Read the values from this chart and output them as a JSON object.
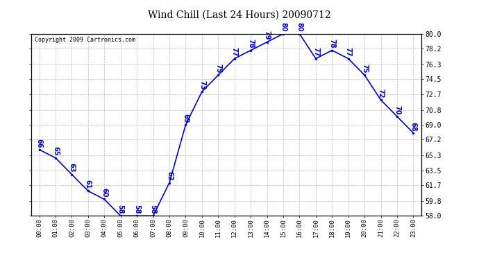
{
  "title": "Wind Chill (Last 24 Hours) 20090712",
  "copyright": "Copyright 2009 Cartronics.com",
  "hours": [
    "00:00",
    "01:00",
    "02:00",
    "03:00",
    "04:00",
    "05:00",
    "06:00",
    "07:00",
    "08:00",
    "09:00",
    "10:00",
    "11:00",
    "12:00",
    "13:00",
    "14:00",
    "15:00",
    "16:00",
    "17:00",
    "18:00",
    "19:00",
    "20:00",
    "21:00",
    "22:00",
    "23:00"
  ],
  "values": [
    66,
    65,
    63,
    61,
    60,
    58,
    58,
    58,
    62,
    69,
    73,
    75,
    77,
    78,
    79,
    80,
    80,
    77,
    78,
    77,
    75,
    72,
    70,
    68
  ],
  "ylim": [
    58.0,
    80.0
  ],
  "yticks": [
    58.0,
    59.8,
    61.7,
    63.5,
    65.3,
    67.2,
    69.0,
    70.8,
    72.7,
    74.5,
    76.3,
    78.2,
    80.0
  ],
  "line_color": "#0000cc",
  "marker_color": "#0000cc",
  "bg_color": "white",
  "grid_color": "#bbbbbb",
  "label_color": "#0000cc",
  "label_fontsize": 7,
  "title_fontsize": 10,
  "copyright_fontsize": 6
}
